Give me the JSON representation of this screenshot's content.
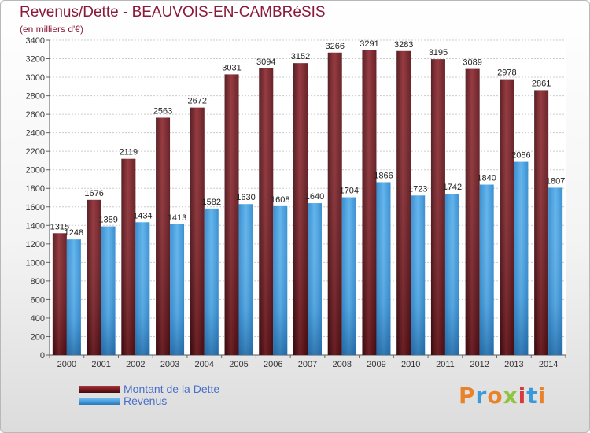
{
  "header": {
    "title": "Revenus/Dette - BEAUVOIS-EN-CAMBRéSIS",
    "subtitle": "(en milliers d'€)"
  },
  "legend": {
    "items": [
      {
        "label": "Montant de la Dette",
        "color": "#7d1a1f"
      },
      {
        "label": "Revenus",
        "color": "#4aa0e0"
      }
    ]
  },
  "logo": {
    "text": "Proxiti",
    "colors": [
      "#e8832a",
      "#3a9ad9",
      "#e8832a",
      "#8fc441",
      "#d63a3a",
      "#3a9ad9",
      "#e8832a"
    ]
  },
  "chart_data": {
    "type": "bar",
    "title": "Revenus/Dette - BEAUVOIS-EN-CAMBRéSIS",
    "ylabel": "(en milliers d'€)",
    "categories": [
      "2000",
      "2001",
      "2002",
      "2003",
      "2004",
      "2005",
      "2006",
      "2007",
      "2008",
      "2009",
      "2010",
      "2011",
      "2012",
      "2013",
      "2014"
    ],
    "series": [
      {
        "name": "Montant de la Dette",
        "color": "#7d1a1f",
        "values": [
          1315,
          1676,
          2119,
          2563,
          2672,
          3031,
          3094,
          3152,
          3266,
          3291,
          3283,
          3195,
          3089,
          2978,
          2861
        ]
      },
      {
        "name": "Revenus",
        "color": "#4aa0e0",
        "values": [
          1248,
          1389,
          1434,
          1413,
          1582,
          1630,
          1608,
          1640,
          1704,
          1866,
          1723,
          1742,
          1840,
          2086,
          1807
        ]
      }
    ],
    "ylim": [
      0,
      3400
    ],
    "yticks": [
      0,
      200,
      400,
      600,
      800,
      1000,
      1200,
      1400,
      1600,
      1800,
      2000,
      2200,
      2400,
      2600,
      2800,
      3000,
      3200,
      3400
    ],
    "grid": true,
    "legend_position": "bottom-left"
  }
}
